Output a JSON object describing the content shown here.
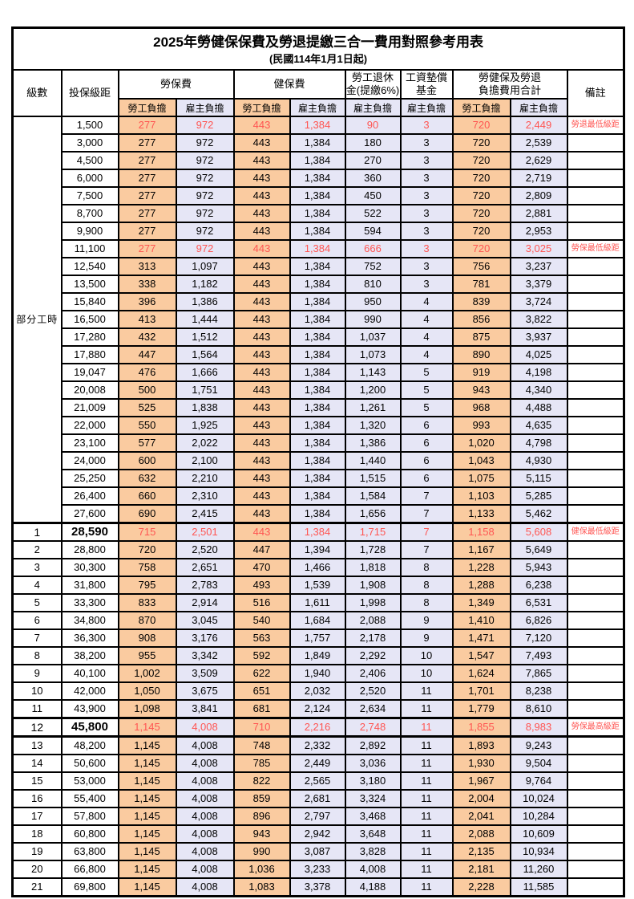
{
  "title": {
    "main": "2025年勞健保保費及勞退提繳三合一費用對照參考用表",
    "sub": "(民國114年1月1日起)"
  },
  "colors": {
    "worker_bg": "#FACBA0",
    "employer_bg": "#E6E6F6",
    "highlight_red": "#FF5552",
    "border": "#000000"
  },
  "table": {
    "header": {
      "level": "級數",
      "bracket": "投保級距",
      "labor": "勞保費",
      "health": "健保費",
      "pension1": "勞工退休",
      "pension2": "金(提繳6%)",
      "wage1": "工資墊償",
      "wage2": "基金",
      "total1": "勞健保及勞退",
      "total2": "負擔費用合計",
      "remark": "備註",
      "worker": "勞工負擔",
      "employer": "雇主負擔"
    },
    "sub_pattern": [
      "w",
      "e",
      "w",
      "e",
      "e",
      "e",
      "w",
      "e"
    ],
    "col_keys": [
      "labor-worker",
      "labor-employer",
      "health-worker",
      "health-employer",
      "pension-employer",
      "wagefund-employer",
      "total-worker",
      "total-employer"
    ],
    "part_time_label": "部分工時",
    "part_time_rows": [
      {
        "bracket": "1,500",
        "v": [
          "277",
          "972",
          "443",
          "1,384",
          "90",
          "3",
          "720",
          "2,449"
        ],
        "remark": "勞退最低級距",
        "red": true
      },
      {
        "bracket": "3,000",
        "v": [
          "277",
          "972",
          "443",
          "1,384",
          "180",
          "3",
          "720",
          "2,539"
        ]
      },
      {
        "bracket": "4,500",
        "v": [
          "277",
          "972",
          "443",
          "1,384",
          "270",
          "3",
          "720",
          "2,629"
        ]
      },
      {
        "bracket": "6,000",
        "v": [
          "277",
          "972",
          "443",
          "1,384",
          "360",
          "3",
          "720",
          "2,719"
        ]
      },
      {
        "bracket": "7,500",
        "v": [
          "277",
          "972",
          "443",
          "1,384",
          "450",
          "3",
          "720",
          "2,809"
        ]
      },
      {
        "bracket": "8,700",
        "v": [
          "277",
          "972",
          "443",
          "1,384",
          "522",
          "3",
          "720",
          "2,881"
        ]
      },
      {
        "bracket": "9,900",
        "v": [
          "277",
          "972",
          "443",
          "1,384",
          "594",
          "3",
          "720",
          "2,953"
        ]
      },
      {
        "bracket": "11,100",
        "v": [
          "277",
          "972",
          "443",
          "1,384",
          "666",
          "3",
          "720",
          "3,025"
        ],
        "remark": "勞保最低級距",
        "red": true
      },
      {
        "bracket": "12,540",
        "v": [
          "313",
          "1,097",
          "443",
          "1,384",
          "752",
          "3",
          "756",
          "3,237"
        ]
      },
      {
        "bracket": "13,500",
        "v": [
          "338",
          "1,182",
          "443",
          "1,384",
          "810",
          "3",
          "781",
          "3,379"
        ]
      },
      {
        "bracket": "15,840",
        "v": [
          "396",
          "1,386",
          "443",
          "1,384",
          "950",
          "4",
          "839",
          "3,724"
        ]
      },
      {
        "bracket": "16,500",
        "v": [
          "413",
          "1,444",
          "443",
          "1,384",
          "990",
          "4",
          "856",
          "3,822"
        ]
      },
      {
        "bracket": "17,280",
        "v": [
          "432",
          "1,512",
          "443",
          "1,384",
          "1,037",
          "4",
          "875",
          "3,937"
        ]
      },
      {
        "bracket": "17,880",
        "v": [
          "447",
          "1,564",
          "443",
          "1,384",
          "1,073",
          "4",
          "890",
          "4,025"
        ]
      },
      {
        "bracket": "19,047",
        "v": [
          "476",
          "1,666",
          "443",
          "1,384",
          "1,143",
          "5",
          "919",
          "4,198"
        ]
      },
      {
        "bracket": "20,008",
        "v": [
          "500",
          "1,751",
          "443",
          "1,384",
          "1,200",
          "5",
          "943",
          "4,340"
        ]
      },
      {
        "bracket": "21,009",
        "v": [
          "525",
          "1,838",
          "443",
          "1,384",
          "1,261",
          "5",
          "968",
          "4,488"
        ]
      },
      {
        "bracket": "22,000",
        "v": [
          "550",
          "1,925",
          "443",
          "1,384",
          "1,320",
          "6",
          "993",
          "4,635"
        ]
      },
      {
        "bracket": "23,100",
        "v": [
          "577",
          "2,022",
          "443",
          "1,384",
          "1,386",
          "6",
          "1,020",
          "4,798"
        ]
      },
      {
        "bracket": "24,000",
        "v": [
          "600",
          "2,100",
          "443",
          "1,384",
          "1,440",
          "6",
          "1,043",
          "4,930"
        ]
      },
      {
        "bracket": "25,250",
        "v": [
          "632",
          "2,210",
          "443",
          "1,384",
          "1,515",
          "6",
          "1,075",
          "5,115"
        ]
      },
      {
        "bracket": "26,400",
        "v": [
          "660",
          "2,310",
          "443",
          "1,384",
          "1,584",
          "7",
          "1,103",
          "5,285"
        ]
      },
      {
        "bracket": "27,600",
        "v": [
          "690",
          "2,415",
          "443",
          "1,384",
          "1,656",
          "7",
          "1,133",
          "5,462"
        ]
      }
    ],
    "numbered_rows": [
      {
        "level": "1",
        "bracket": "28,590",
        "v": [
          "715",
          "2,501",
          "443",
          "1,384",
          "1,715",
          "7",
          "1,158",
          "5,608"
        ],
        "remark": "健保最低級距",
        "red": true,
        "emph": true,
        "thick_top": true
      },
      {
        "level": "2",
        "bracket": "28,800",
        "v": [
          "720",
          "2,520",
          "447",
          "1,394",
          "1,728",
          "7",
          "1,167",
          "5,649"
        ]
      },
      {
        "level": "3",
        "bracket": "30,300",
        "v": [
          "758",
          "2,651",
          "470",
          "1,466",
          "1,818",
          "8",
          "1,228",
          "5,943"
        ]
      },
      {
        "level": "4",
        "bracket": "31,800",
        "v": [
          "795",
          "2,783",
          "493",
          "1,539",
          "1,908",
          "8",
          "1,288",
          "6,238"
        ]
      },
      {
        "level": "5",
        "bracket": "33,300",
        "v": [
          "833",
          "2,914",
          "516",
          "1,611",
          "1,998",
          "8",
          "1,349",
          "6,531"
        ]
      },
      {
        "level": "6",
        "bracket": "34,800",
        "v": [
          "870",
          "3,045",
          "540",
          "1,684",
          "2,088",
          "9",
          "1,410",
          "6,826"
        ]
      },
      {
        "level": "7",
        "bracket": "36,300",
        "v": [
          "908",
          "3,176",
          "563",
          "1,757",
          "2,178",
          "9",
          "1,471",
          "7,120"
        ]
      },
      {
        "level": "8",
        "bracket": "38,200",
        "v": [
          "955",
          "3,342",
          "592",
          "1,849",
          "2,292",
          "10",
          "1,547",
          "7,493"
        ]
      },
      {
        "level": "9",
        "bracket": "40,100",
        "v": [
          "1,002",
          "3,509",
          "622",
          "1,940",
          "2,406",
          "10",
          "1,624",
          "7,865"
        ]
      },
      {
        "level": "10",
        "bracket": "42,000",
        "v": [
          "1,050",
          "3,675",
          "651",
          "2,032",
          "2,520",
          "11",
          "1,701",
          "8,238"
        ]
      },
      {
        "level": "11",
        "bracket": "43,900",
        "v": [
          "1,098",
          "3,841",
          "681",
          "2,124",
          "2,634",
          "11",
          "1,779",
          "8,610"
        ]
      },
      {
        "level": "12",
        "bracket": "45,800",
        "v": [
          "1,145",
          "4,008",
          "710",
          "2,216",
          "2,748",
          "11",
          "1,855",
          "8,983"
        ],
        "remark": "勞保最高級距",
        "red": true,
        "emph": true,
        "thick_top": true,
        "thick_bottom": true
      },
      {
        "level": "13",
        "bracket": "48,200",
        "v": [
          "1,145",
          "4,008",
          "748",
          "2,332",
          "2,892",
          "11",
          "1,893",
          "9,243"
        ]
      },
      {
        "level": "14",
        "bracket": "50,600",
        "v": [
          "1,145",
          "4,008",
          "785",
          "2,449",
          "3,036",
          "11",
          "1,930",
          "9,504"
        ]
      },
      {
        "level": "15",
        "bracket": "53,000",
        "v": [
          "1,145",
          "4,008",
          "822",
          "2,565",
          "3,180",
          "11",
          "1,967",
          "9,764"
        ]
      },
      {
        "level": "16",
        "bracket": "55,400",
        "v": [
          "1,145",
          "4,008",
          "859",
          "2,681",
          "3,324",
          "11",
          "2,004",
          "10,024"
        ]
      },
      {
        "level": "17",
        "bracket": "57,800",
        "v": [
          "1,145",
          "4,008",
          "896",
          "2,797",
          "3,468",
          "11",
          "2,041",
          "10,284"
        ]
      },
      {
        "level": "18",
        "bracket": "60,800",
        "v": [
          "1,145",
          "4,008",
          "943",
          "2,942",
          "3,648",
          "11",
          "2,088",
          "10,609"
        ]
      },
      {
        "level": "19",
        "bracket": "63,800",
        "v": [
          "1,145",
          "4,008",
          "990",
          "3,087",
          "3,828",
          "11",
          "2,135",
          "10,934"
        ]
      },
      {
        "level": "20",
        "bracket": "66,800",
        "v": [
          "1,145",
          "4,008",
          "1,036",
          "3,233",
          "4,008",
          "11",
          "2,181",
          "11,260"
        ]
      },
      {
        "level": "21",
        "bracket": "69,800",
        "v": [
          "1,145",
          "4,008",
          "1,083",
          "3,378",
          "4,188",
          "11",
          "2,228",
          "11,585"
        ]
      }
    ]
  }
}
